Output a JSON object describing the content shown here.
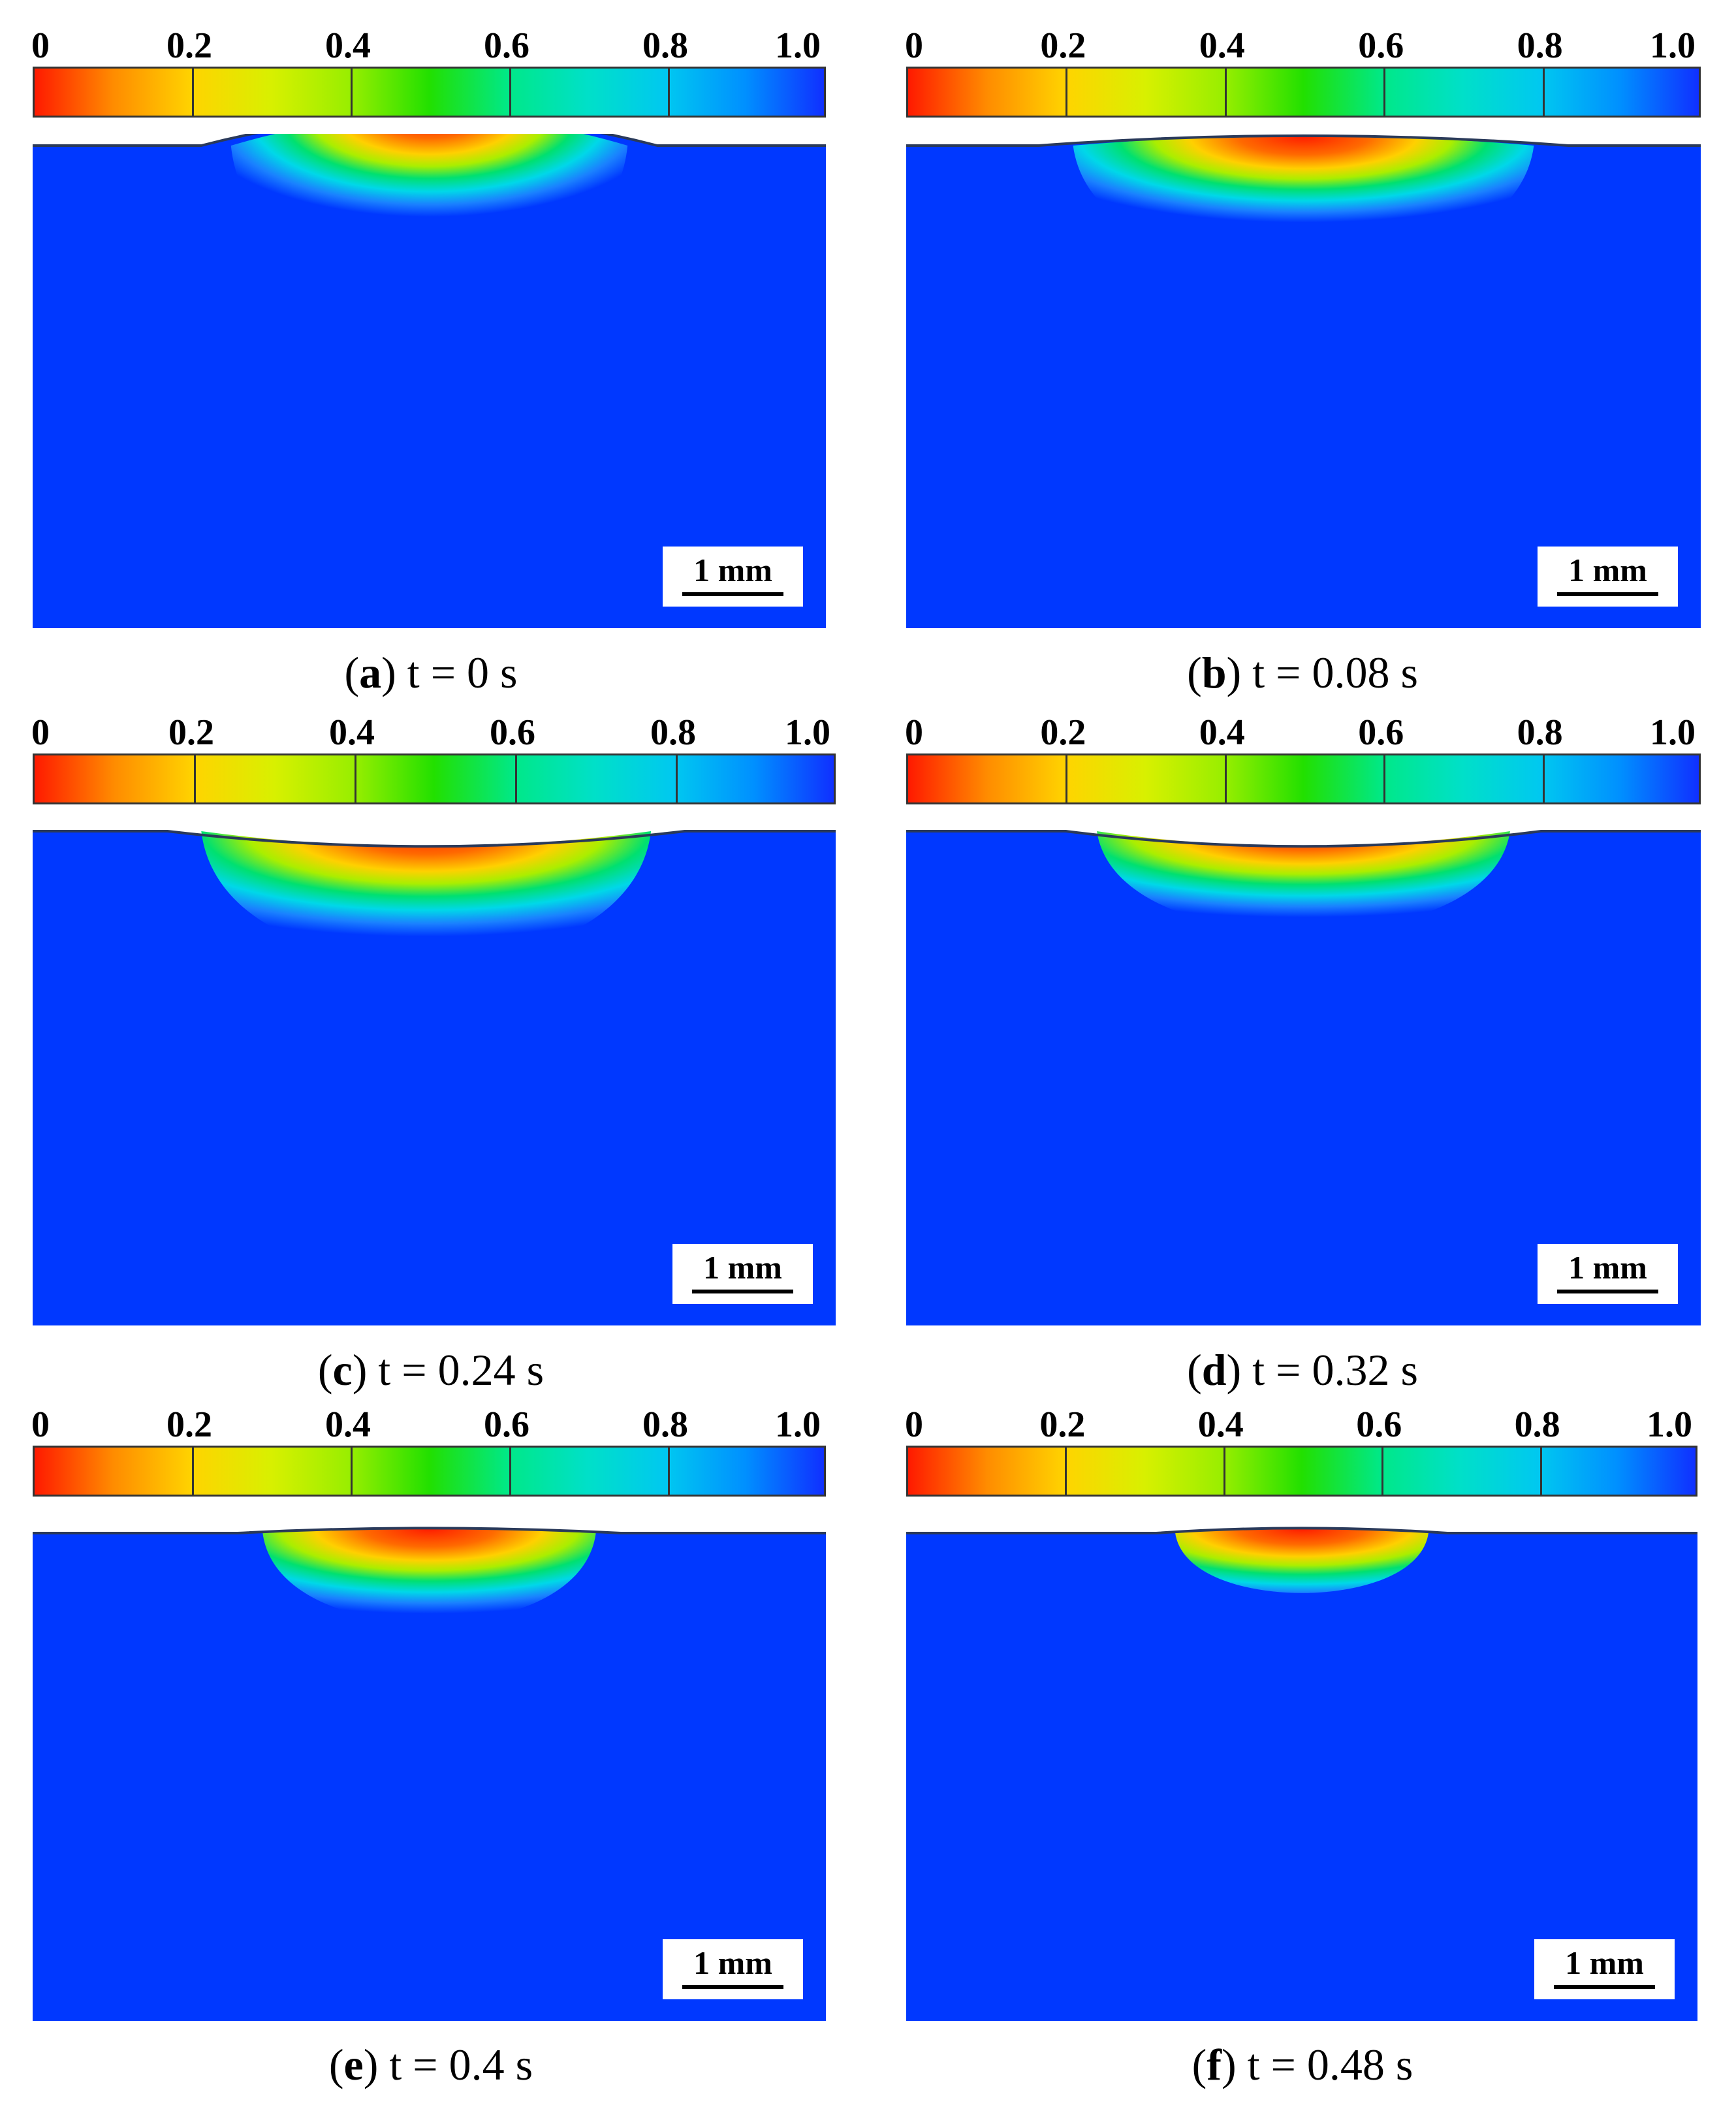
{
  "colorbar": {
    "tick_labels": [
      "0",
      "0.2",
      "0.4",
      "0.6",
      "0.8",
      "1.0"
    ],
    "gradient_colors": [
      "#ff1a00",
      "#ff8c00",
      "#ffd400",
      "#d8f000",
      "#98ee00",
      "#22e000",
      "#00e888",
      "#00e0c8",
      "#00c8f0",
      "#0090ff",
      "#1030ff"
    ]
  },
  "field_color": "#0038ff",
  "scalebar_label": "1 mm",
  "panels": [
    {
      "letter": "a",
      "caption": "t = 0 s",
      "intensity": 1.0
    },
    {
      "letter": "b",
      "caption": "t = 0.08 s",
      "intensity": 0.95
    },
    {
      "letter": "c",
      "caption": "t = 0.24 s",
      "intensity": 0.8
    },
    {
      "letter": "d",
      "caption": "t = 0.32 s",
      "intensity": 0.75
    },
    {
      "letter": "e",
      "caption": "t = 0.4 s",
      "intensity": 0.7
    },
    {
      "letter": "f",
      "caption": "t = 0.48 s",
      "intensity": 0.45
    }
  ]
}
